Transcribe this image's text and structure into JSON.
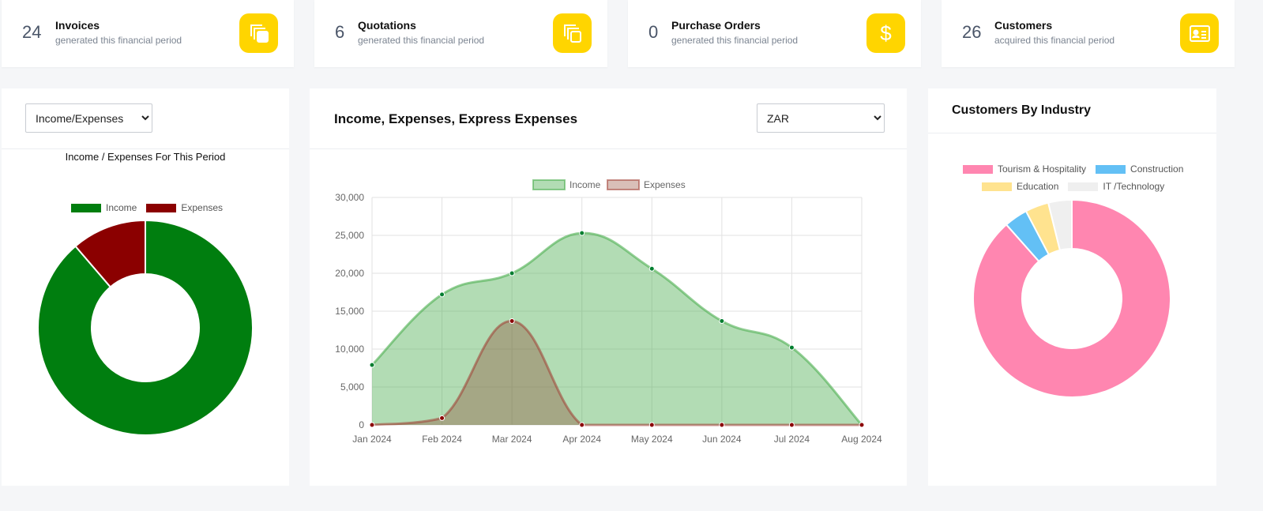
{
  "cards": [
    {
      "value": "24",
      "title": "Invoices",
      "subtitle": "generated this financial period",
      "icon": "copy-icon"
    },
    {
      "value": "6",
      "title": "Quotations",
      "subtitle": "generated this financial period",
      "icon": "copy-icon"
    },
    {
      "value": "0",
      "title": "Purchase Orders",
      "subtitle": "generated this financial period",
      "icon": "dollar-icon"
    },
    {
      "value": "26",
      "title": "Customers",
      "subtitle": "acquired this financial period",
      "icon": "id-card-icon"
    }
  ],
  "accent": "#ffd500",
  "left_panel": {
    "select_value": "Income/Expenses",
    "chart_title": "Income / Expenses For This Period"
  },
  "middle_panel": {
    "title": "Income, Expenses, Express Expenses",
    "currency_select": "ZAR"
  },
  "right_panel": {
    "title": "Customers By Industry"
  },
  "chart_data": [
    {
      "type": "pie",
      "title": "Income / Expenses For This Period",
      "donut": true,
      "legend": "top",
      "labels": [
        "Income",
        "Expenses"
      ],
      "values": [
        114900,
        14600
      ],
      "colors": [
        "#007e0f",
        "#8b0000"
      ]
    },
    {
      "type": "area",
      "legend": "top",
      "grid": true,
      "categories": [
        "Jan 2024",
        "Feb 2024",
        "Mar 2024",
        "Apr 2024",
        "May 2024",
        "Jun 2024",
        "Jul 2024",
        "Aug 2024"
      ],
      "ylim": [
        0,
        30000
      ],
      "yticks": [
        "0",
        "5,000",
        "10,000",
        "15,000",
        "20,000",
        "25,000",
        "30,000"
      ],
      "series": [
        {
          "name": "Income",
          "values": [
            7900,
            17200,
            20000,
            25300,
            20600,
            13700,
            10200,
            0
          ],
          "color": "#4caf50"
        },
        {
          "name": "Expenses",
          "values": [
            0,
            900,
            13700,
            0,
            0,
            0,
            0,
            0
          ],
          "color": "#c0504d"
        }
      ]
    },
    {
      "type": "pie",
      "donut": true,
      "legend": "top",
      "labels": [
        "Tourism & Hospitality",
        "Construction",
        "Education",
        "IT /Technology"
      ],
      "values": [
        23,
        1,
        1,
        1
      ],
      "colors": [
        "#ff86b0",
        "#63c0f5",
        "#ffe38f",
        "#efefef"
      ]
    }
  ]
}
